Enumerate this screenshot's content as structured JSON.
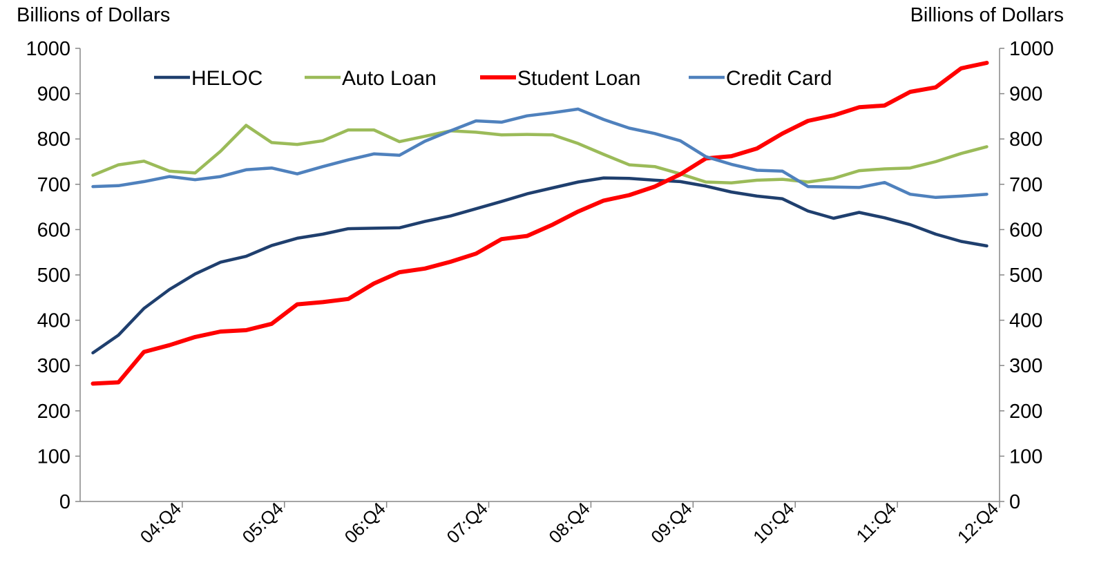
{
  "chart_data": {
    "type": "line",
    "ylabel_left": "Billions of Dollars",
    "ylabel_right": "Billions of Dollars",
    "ylim": [
      0,
      1000
    ],
    "yticks": [
      0,
      100,
      200,
      300,
      400,
      500,
      600,
      700,
      800,
      900,
      1000
    ],
    "x": [
      "04:Q1",
      "04:Q2",
      "04:Q3",
      "04:Q4",
      "05:Q1",
      "05:Q2",
      "05:Q3",
      "05:Q4",
      "06:Q1",
      "06:Q2",
      "06:Q3",
      "06:Q4",
      "07:Q1",
      "07:Q2",
      "07:Q3",
      "07:Q4",
      "08:Q1",
      "08:Q2",
      "08:Q3",
      "08:Q4",
      "09:Q1",
      "09:Q2",
      "09:Q3",
      "09:Q4",
      "10:Q1",
      "10:Q2",
      "10:Q3",
      "10:Q4",
      "11:Q1",
      "11:Q2",
      "11:Q3",
      "11:Q4",
      "12:Q1",
      "12:Q2",
      "12:Q3",
      "12:Q4"
    ],
    "xtick_labels": [
      "04:Q4",
      "05:Q4",
      "06:Q4",
      "07:Q4",
      "08:Q4",
      "09:Q4",
      "10:Q4",
      "11:Q4",
      "12:Q4"
    ],
    "legend_position": "top",
    "grid": false,
    "series": [
      {
        "name": "HELOC",
        "color": "#1f3f6e",
        "values": [
          328,
          367,
          426,
          468,
          502,
          528,
          541,
          565,
          581,
          590,
          602,
          603,
          604,
          618,
          630,
          646,
          662,
          679,
          692,
          705,
          714,
          713,
          709,
          706,
          696,
          683,
          674,
          668,
          641,
          625,
          638,
          626,
          611,
          590,
          574,
          564
        ]
      },
      {
        "name": "Auto Loan",
        "color": "#9bbb59",
        "values": [
          720,
          743,
          751,
          729,
          725,
          773,
          830,
          792,
          788,
          796,
          820,
          820,
          794,
          806,
          818,
          815,
          809,
          810,
          809,
          790,
          766,
          743,
          739,
          723,
          705,
          703,
          709,
          711,
          705,
          713,
          730,
          734,
          736,
          750,
          768,
          783
        ]
      },
      {
        "name": "Student Loan",
        "color": "#ff0000",
        "values": [
          260,
          263,
          330,
          345,
          363,
          375,
          378,
          392,
          435,
          440,
          447,
          481,
          506,
          514,
          529,
          547,
          579,
          586,
          611,
          640,
          664,
          676,
          695,
          722,
          757,
          762,
          779,
          812,
          840,
          852,
          870,
          874,
          904,
          914,
          956,
          968
        ]
      },
      {
        "name": "Credit Card",
        "color": "#4f81bd",
        "values": [
          695,
          697,
          706,
          717,
          710,
          717,
          732,
          736,
          723,
          739,
          754,
          767,
          764,
          795,
          818,
          840,
          837,
          851,
          858,
          866,
          843,
          824,
          812,
          796,
          761,
          744,
          731,
          729,
          695,
          694,
          693,
          704,
          678,
          671,
          674,
          678
        ]
      }
    ]
  }
}
